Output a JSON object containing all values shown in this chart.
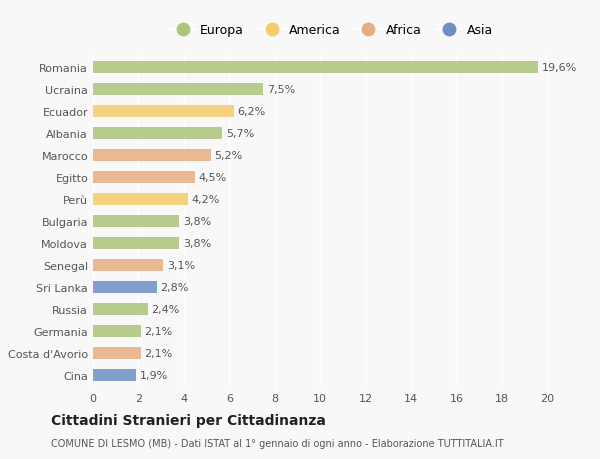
{
  "countries": [
    "Romania",
    "Ucraina",
    "Ecuador",
    "Albania",
    "Marocco",
    "Egitto",
    "Perù",
    "Bulgaria",
    "Moldova",
    "Senegal",
    "Sri Lanka",
    "Russia",
    "Germania",
    "Costa d'Avorio",
    "Cina"
  ],
  "values": [
    19.6,
    7.5,
    6.2,
    5.7,
    5.2,
    4.5,
    4.2,
    3.8,
    3.8,
    3.1,
    2.8,
    2.4,
    2.1,
    2.1,
    1.9
  ],
  "continents": [
    "Europa",
    "Europa",
    "America",
    "Europa",
    "Africa",
    "Africa",
    "America",
    "Europa",
    "Europa",
    "Africa",
    "Asia",
    "Europa",
    "Europa",
    "Africa",
    "Asia"
  ],
  "colors": {
    "Europa": "#adc47d",
    "America": "#f5cc6a",
    "Africa": "#e8ad80",
    "Asia": "#6e8fc4"
  },
  "legend_order": [
    "Europa",
    "America",
    "Africa",
    "Asia"
  ],
  "xlim": [
    0,
    21
  ],
  "xticks": [
    0,
    2,
    4,
    6,
    8,
    10,
    12,
    14,
    16,
    18,
    20
  ],
  "title": "Cittadini Stranieri per Cittadinanza",
  "subtitle": "COMUNE DI LESMO (MB) - Dati ISTAT al 1° gennaio di ogni anno - Elaborazione TUTTITALIA.IT",
  "bg_color": "#f8f8f8",
  "bar_height": 0.55,
  "label_fontsize": 8,
  "tick_fontsize": 8,
  "legend_fontsize": 9
}
